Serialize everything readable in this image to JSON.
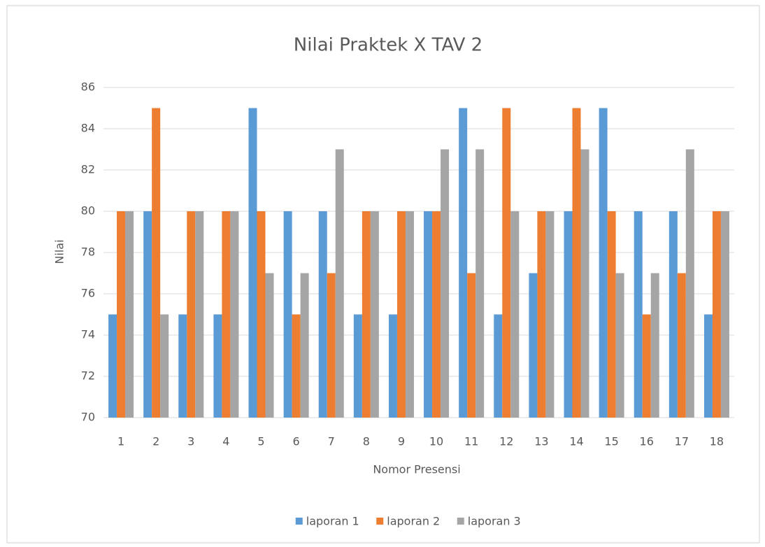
{
  "chart_data": {
    "type": "bar",
    "title": "Nilai Praktek X TAV 2",
    "x_label": "Nomor Presensi",
    "y_label": "Nilai",
    "categories": [
      "1",
      "2",
      "3",
      "4",
      "5",
      "6",
      "7",
      "8",
      "9",
      "10",
      "11",
      "12",
      "13",
      "14",
      "15",
      "16",
      "17",
      "18"
    ],
    "series": [
      {
        "name": "laporan 1",
        "color": "#5b9bd5",
        "values": [
          75,
          80,
          75,
          75,
          85,
          80,
          80,
          75,
          75,
          80,
          85,
          75,
          77,
          80,
          85,
          80,
          80,
          75
        ]
      },
      {
        "name": "laporan 2",
        "color": "#ed7d31",
        "values": [
          80,
          85,
          80,
          80,
          80,
          75,
          77,
          80,
          80,
          80,
          77,
          85,
          80,
          85,
          80,
          75,
          77,
          80
        ]
      },
      {
        "name": "laporan 3",
        "color": "#a5a5a5",
        "values": [
          80,
          75,
          80,
          80,
          77,
          77,
          83,
          80,
          80,
          83,
          83,
          80,
          80,
          83,
          77,
          77,
          83,
          80
        ]
      }
    ],
    "ylim": [
      70,
      86
    ],
    "yticks": [
      70,
      72,
      74,
      76,
      78,
      80,
      82,
      84,
      86
    ],
    "grid": true,
    "legend": "bottom"
  }
}
